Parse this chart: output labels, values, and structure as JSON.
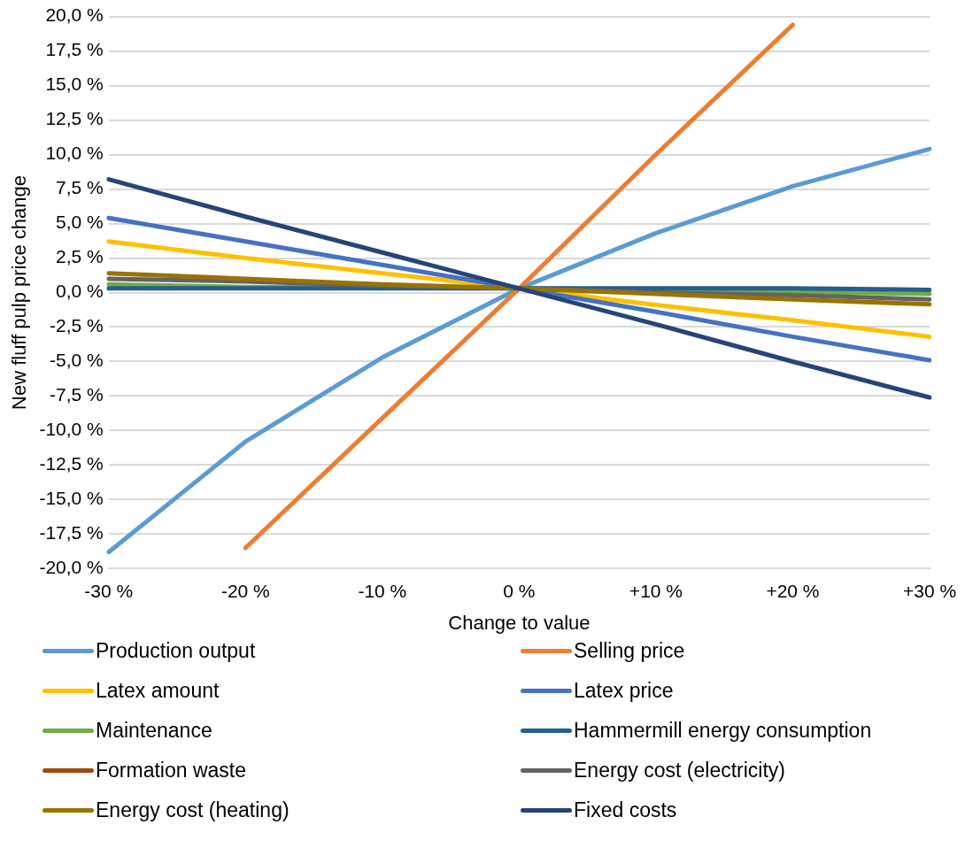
{
  "chart_data": {
    "type": "line",
    "xlabel": "Change to value",
    "ylabel": "New fluff pulp price change",
    "categories": [
      "-30 %",
      "-20 %",
      "-10 %",
      "0 %",
      "+10 %",
      "+20 %",
      "+30 %"
    ],
    "series": [
      {
        "name": "Production output",
        "color": "#5b9bd5",
        "values": [
          -18.8,
          -10.8,
          -4.7,
          0.3,
          4.3,
          7.7,
          10.4
        ]
      },
      {
        "name": "Selling price",
        "color": "#ed7d31",
        "values": [
          null,
          -18.5,
          -9.1,
          0.3,
          10.0,
          19.4,
          null
        ]
      },
      {
        "name": "Latex amount",
        "color": "#ffc000",
        "values": [
          3.7,
          2.5,
          1.4,
          0.3,
          -0.9,
          -2.0,
          -3.2
        ]
      },
      {
        "name": "Latex price",
        "color": "#4472c4",
        "values": [
          5.4,
          3.7,
          2.0,
          0.3,
          -1.4,
          -3.2,
          -4.9
        ]
      },
      {
        "name": "Maintenance",
        "color": "#70ad47",
        "values": [
          0.6,
          0.4,
          0.35,
          0.3,
          0.2,
          0.05,
          -0.1
        ]
      },
      {
        "name": "Hammermill energy consumption",
        "color": "#255e91",
        "values": [
          0.3,
          0.3,
          0.3,
          0.3,
          0.3,
          0.3,
          0.2
        ]
      },
      {
        "name": "Formation waste",
        "color": "#9e480e",
        "values": [
          null,
          null,
          null,
          null,
          null,
          null,
          null
        ]
      },
      {
        "name": "Energy cost (electricity)",
        "color": "#636363",
        "values": [
          1.0,
          0.8,
          0.5,
          0.3,
          0.0,
          -0.2,
          -0.5
        ]
      },
      {
        "name": "Energy cost (heating)",
        "color": "#997300",
        "values": [
          1.4,
          1.0,
          0.6,
          0.3,
          -0.1,
          -0.5,
          -0.85
        ]
      },
      {
        "name": "Fixed costs",
        "color": "#264478",
        "values": [
          8.2,
          5.5,
          2.9,
          0.3,
          -2.3,
          -5.0,
          -7.6
        ]
      }
    ],
    "ylim": [
      -20,
      20
    ],
    "yticks": [
      {
        "value": -20,
        "label": "-20,0 %"
      },
      {
        "value": -17.5,
        "label": "-17,5 %"
      },
      {
        "value": -15,
        "label": "-15,0 %"
      },
      {
        "value": -12.5,
        "label": "-12,5 %"
      },
      {
        "value": -10,
        "label": "-10,0 %"
      },
      {
        "value": -7.5,
        "label": "-7,5 %"
      },
      {
        "value": -5,
        "label": "-5,0 %"
      },
      {
        "value": -2.5,
        "label": "-2,5 %"
      },
      {
        "value": 0,
        "label": "0,0 %"
      },
      {
        "value": 2.5,
        "label": "2,5 %"
      },
      {
        "value": 5,
        "label": "5,0 %"
      },
      {
        "value": 7.5,
        "label": "7,5 %"
      },
      {
        "value": 10,
        "label": "10,0 %"
      },
      {
        "value": 12.5,
        "label": "12,5 %"
      },
      {
        "value": 15,
        "label": "15,0 %"
      },
      {
        "value": 17.5,
        "label": "17,5 %"
      },
      {
        "value": 20,
        "label": "20,0 %"
      }
    ],
    "grid": "y",
    "legend": "bottom",
    "marker": "none",
    "line_style": "solid"
  }
}
